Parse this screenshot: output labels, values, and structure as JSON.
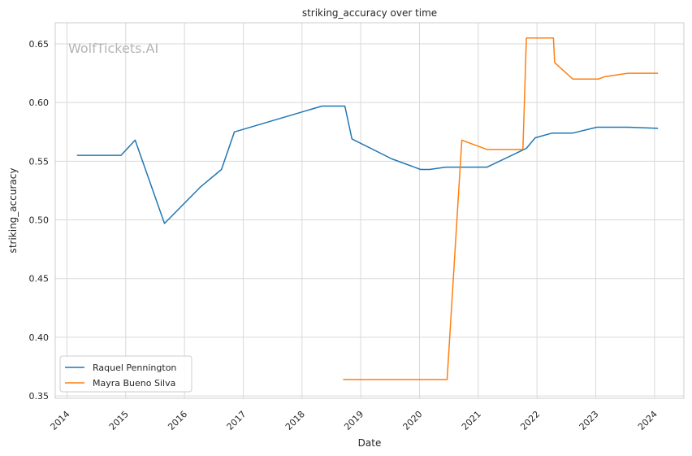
{
  "chart_data": {
    "type": "line",
    "title": "striking_accuracy over time",
    "xlabel": "Date",
    "ylabel": "striking_accuracy",
    "watermark": "WolfTickets.AI",
    "xlim": [
      2013.8,
      2024.5
    ],
    "ylim": [
      0.348,
      0.668
    ],
    "x_ticks": [
      2014,
      2015,
      2016,
      2017,
      2018,
      2019,
      2020,
      2021,
      2022,
      2023,
      2024
    ],
    "x_tick_labels": [
      "2014",
      "2015",
      "2016",
      "2017",
      "2018",
      "2019",
      "2020",
      "2021",
      "2022",
      "2023",
      "2024"
    ],
    "y_ticks": [
      0.35,
      0.4,
      0.45,
      0.5,
      0.55,
      0.6,
      0.65
    ],
    "y_tick_labels": [
      "0.35",
      "0.40",
      "0.45",
      "0.50",
      "0.55",
      "0.60",
      "0.65"
    ],
    "grid": true,
    "legend_position": "lower-left",
    "series": [
      {
        "name": "Raquel Pennington",
        "color": "#1f77b4",
        "points": [
          [
            2014.18,
            0.555
          ],
          [
            2014.92,
            0.555
          ],
          [
            2015.16,
            0.568
          ],
          [
            2015.66,
            0.497
          ],
          [
            2016.27,
            0.528
          ],
          [
            2016.63,
            0.543
          ],
          [
            2016.85,
            0.575
          ],
          [
            2018.34,
            0.597
          ],
          [
            2018.73,
            0.597
          ],
          [
            2018.85,
            0.569
          ],
          [
            2019.53,
            0.552
          ],
          [
            2020.02,
            0.543
          ],
          [
            2020.17,
            0.543
          ],
          [
            2020.45,
            0.545
          ],
          [
            2021.15,
            0.545
          ],
          [
            2021.82,
            0.561
          ],
          [
            2021.97,
            0.57
          ],
          [
            2022.26,
            0.574
          ],
          [
            2022.61,
            0.574
          ],
          [
            2023.02,
            0.579
          ],
          [
            2023.55,
            0.579
          ],
          [
            2024.05,
            0.578
          ]
        ]
      },
      {
        "name": "Mayra Bueno Silva",
        "color": "#ff7f0e",
        "points": [
          [
            2018.71,
            0.364
          ],
          [
            2020.47,
            0.364
          ],
          [
            2020.72,
            0.568
          ],
          [
            2021.15,
            0.56
          ],
          [
            2021.76,
            0.56
          ],
          [
            2021.82,
            0.655
          ],
          [
            2022.28,
            0.655
          ],
          [
            2022.3,
            0.634
          ],
          [
            2022.61,
            0.62
          ],
          [
            2023.04,
            0.62
          ],
          [
            2023.15,
            0.622
          ],
          [
            2023.55,
            0.625
          ],
          [
            2024.05,
            0.625
          ]
        ]
      }
    ]
  }
}
